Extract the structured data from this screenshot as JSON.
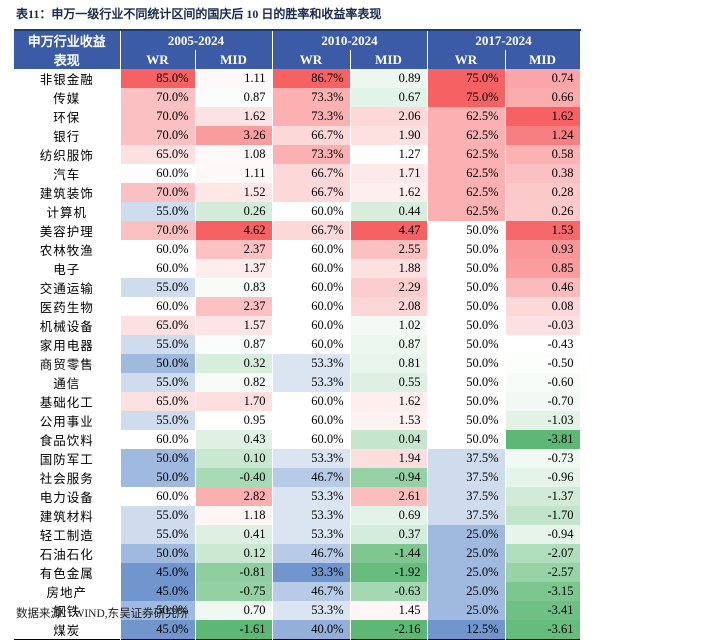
{
  "title": "表11：申万一级行业不同统计区间的国庆后 10 日的胜率和收益率表现",
  "table": {
    "corner": [
      "申万行业收益",
      "表现"
    ],
    "periods": [
      "2005-2024",
      "2010-2024",
      "2017-2024"
    ],
    "subheaders": [
      "WR",
      "MID",
      "WR",
      "MID",
      "WR",
      "MID"
    ],
    "rows": [
      [
        "非银金融",
        "85.0%",
        "1.11",
        "86.7%",
        "0.89",
        "75.0%",
        "0.74"
      ],
      [
        "传媒",
        "70.0%",
        "0.87",
        "73.3%",
        "0.67",
        "75.0%",
        "0.66"
      ],
      [
        "环保",
        "70.0%",
        "1.62",
        "73.3%",
        "2.06",
        "62.5%",
        "1.62"
      ],
      [
        "银行",
        "70.0%",
        "3.26",
        "66.7%",
        "1.90",
        "62.5%",
        "1.24"
      ],
      [
        "纺织服饰",
        "65.0%",
        "1.08",
        "73.3%",
        "1.27",
        "62.5%",
        "0.58"
      ],
      [
        "汽车",
        "60.0%",
        "1.11",
        "66.7%",
        "1.71",
        "62.5%",
        "0.38"
      ],
      [
        "建筑装饰",
        "70.0%",
        "1.52",
        "66.7%",
        "1.62",
        "62.5%",
        "0.28"
      ],
      [
        "计算机",
        "55.0%",
        "0.26",
        "60.0%",
        "0.44",
        "62.5%",
        "0.26"
      ],
      [
        "美容护理",
        "70.0%",
        "4.62",
        "66.7%",
        "4.47",
        "50.0%",
        "1.53"
      ],
      [
        "农林牧渔",
        "60.0%",
        "2.37",
        "60.0%",
        "2.55",
        "50.0%",
        "0.93"
      ],
      [
        "电子",
        "60.0%",
        "1.37",
        "60.0%",
        "1.88",
        "50.0%",
        "0.85"
      ],
      [
        "交通运输",
        "55.0%",
        "0.83",
        "60.0%",
        "2.29",
        "50.0%",
        "0.46"
      ],
      [
        "医药生物",
        "60.0%",
        "2.37",
        "60.0%",
        "2.08",
        "50.0%",
        "0.08"
      ],
      [
        "机械设备",
        "65.0%",
        "1.57",
        "60.0%",
        "1.02",
        "50.0%",
        "-0.03"
      ],
      [
        "家用电器",
        "55.0%",
        "0.87",
        "60.0%",
        "0.87",
        "50.0%",
        "-0.43"
      ],
      [
        "商贸零售",
        "50.0%",
        "0.32",
        "53.3%",
        "0.81",
        "50.0%",
        "-0.50"
      ],
      [
        "通信",
        "55.0%",
        "0.82",
        "53.3%",
        "0.55",
        "50.0%",
        "-0.60"
      ],
      [
        "基础化工",
        "65.0%",
        "1.70",
        "60.0%",
        "1.62",
        "50.0%",
        "-0.70"
      ],
      [
        "公用事业",
        "55.0%",
        "0.95",
        "60.0%",
        "1.53",
        "50.0%",
        "-1.03"
      ],
      [
        "食品饮料",
        "60.0%",
        "0.43",
        "60.0%",
        "0.04",
        "50.0%",
        "-3.81"
      ],
      [
        "国防军工",
        "50.0%",
        "0.10",
        "53.3%",
        "1.94",
        "37.5%",
        "-0.73"
      ],
      [
        "社会服务",
        "50.0%",
        "-0.40",
        "46.7%",
        "-0.94",
        "37.5%",
        "-0.96"
      ],
      [
        "电力设备",
        "60.0%",
        "2.82",
        "53.3%",
        "2.61",
        "37.5%",
        "-1.37"
      ],
      [
        "建筑材料",
        "55.0%",
        "1.18",
        "53.3%",
        "0.69",
        "37.5%",
        "-1.70"
      ],
      [
        "轻工制造",
        "55.0%",
        "0.41",
        "53.3%",
        "0.37",
        "25.0%",
        "-0.94"
      ],
      [
        "石油石化",
        "50.0%",
        "0.12",
        "46.7%",
        "-1.44",
        "25.0%",
        "-2.07"
      ],
      [
        "有色金属",
        "45.0%",
        "-0.81",
        "33.3%",
        "-1.92",
        "25.0%",
        "-2.57"
      ],
      [
        "房地产",
        "45.0%",
        "-0.75",
        "46.7%",
        "-0.63",
        "25.0%",
        "-3.15"
      ],
      [
        "钢铁",
        "50.0%",
        "0.70",
        "53.3%",
        "1.45",
        "25.0%",
        "-3.41"
      ],
      [
        "煤炭",
        "45.0%",
        "-1.61",
        "40.0%",
        "-2.16",
        "12.5%",
        "-3.61"
      ]
    ]
  },
  "source": "数据来源：WIND,东吴证券研究所"
}
